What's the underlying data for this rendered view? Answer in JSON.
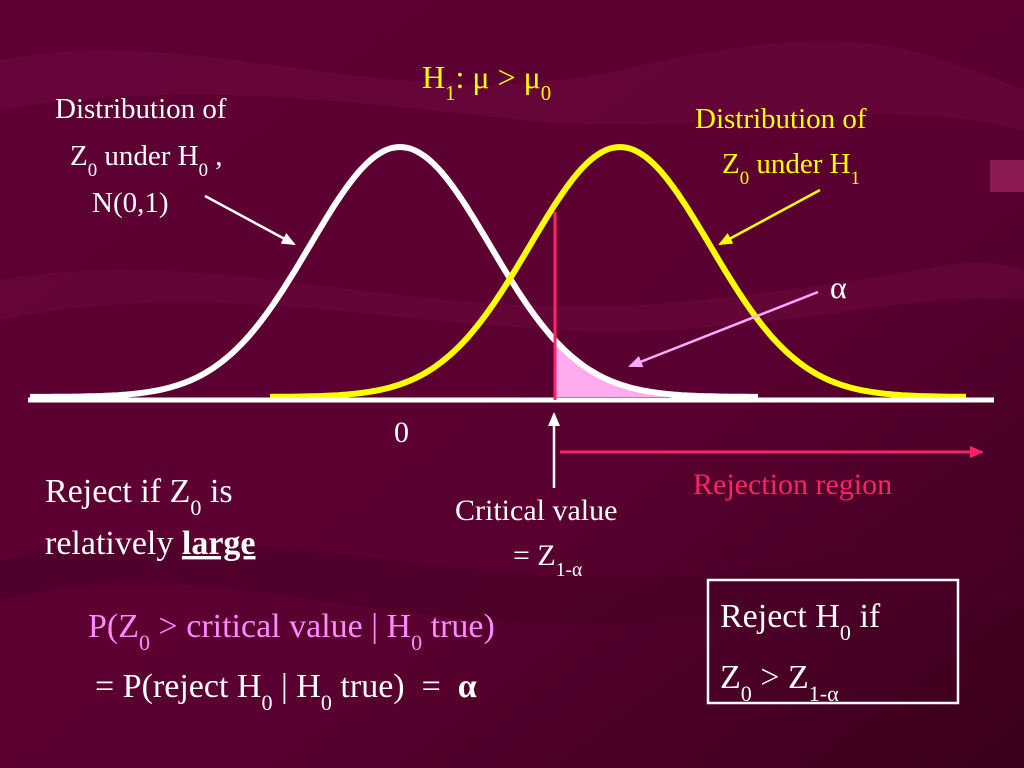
{
  "title": [
    "H",
    "1",
    ": μ > μ",
    "0"
  ],
  "h0_label": [
    [
      "Distribution of"
    ],
    [
      "Z",
      "0",
      " under H",
      "0",
      " ,"
    ],
    [
      "N(0,1)"
    ]
  ],
  "h1_label": [
    [
      "Distribution of"
    ],
    [
      "Z",
      "0",
      " under H",
      "1"
    ]
  ],
  "alpha_label": "α",
  "axis_zero": "0",
  "reject_rule": [
    [
      "Reject if Z",
      "0",
      " is"
    ],
    [
      "relatively ",
      "large"
    ]
  ],
  "critical_value": [
    [
      "Critical value"
    ],
    [
      "= Z",
      "1-α"
    ]
  ],
  "rejection_region": "Rejection region",
  "probability": [
    [
      "P(Z",
      "0",
      " > critical value | H",
      "0",
      " true)"
    ],
    [
      "= P(reject H",
      "0",
      " | H",
      "0",
      " true)  =  ",
      "α"
    ]
  ],
  "reject_box": [
    [
      "Reject H",
      "0",
      " if"
    ],
    [
      "Z",
      "0",
      " > Z",
      "1-α"
    ]
  ]
}
